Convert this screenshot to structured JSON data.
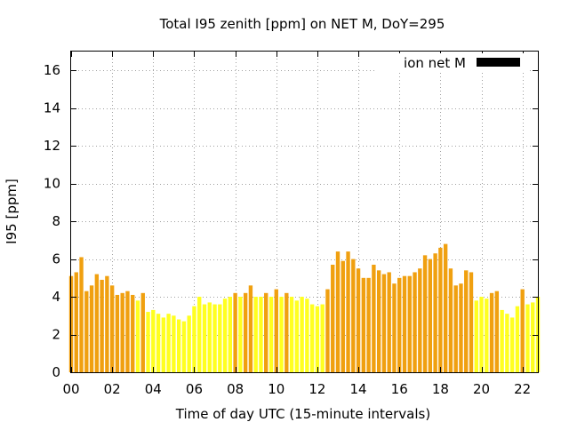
{
  "chart_data": {
    "type": "bar",
    "title": "Total I95 zenith [ppm] on NET M, DoY=295",
    "xlabel": "Time of day UTC (15-minute intervals)",
    "ylabel": "I95 [ppm]",
    "ylim": [
      0,
      17
    ],
    "xlim": [
      0,
      22.75
    ],
    "bar_width_hours": 0.19,
    "yticks": [
      0,
      2,
      4,
      6,
      8,
      10,
      12,
      14,
      16
    ],
    "ytick_labels": [
      "0",
      "2",
      "4",
      "6",
      "8",
      "10",
      "12",
      "14",
      "16"
    ],
    "xticks": [
      0,
      2,
      4,
      6,
      8,
      10,
      12,
      14,
      16,
      18,
      20,
      22
    ],
    "xtick_labels": [
      "00",
      "02",
      "04",
      "06",
      "08",
      "10",
      "12",
      "14",
      "16",
      "18",
      "20",
      "22"
    ],
    "grid": true,
    "legend": {
      "label": "ion net M",
      "color": "#000000",
      "position": "top-right"
    },
    "colors": {
      "high": "#f0a010",
      "low": "#ffff20"
    },
    "threshold": 4.05,
    "x_start": 0.0,
    "x_step": 0.25,
    "values": [
      5.1,
      5.3,
      6.1,
      4.3,
      4.6,
      5.2,
      4.9,
      5.1,
      4.6,
      4.1,
      4.2,
      4.3,
      4.1,
      3.8,
      4.2,
      3.2,
      3.3,
      3.1,
      2.9,
      3.1,
      3.0,
      2.8,
      2.7,
      3.0,
      3.5,
      4.0,
      3.6,
      3.7,
      3.6,
      3.6,
      3.9,
      4.0,
      4.2,
      4.0,
      4.2,
      4.6,
      4.0,
      4.0,
      4.2,
      4.0,
      4.4,
      4.0,
      4.2,
      4.0,
      3.8,
      4.0,
      3.9,
      3.6,
      3.5,
      3.6,
      4.4,
      5.7,
      6.4,
      5.9,
      6.4,
      6.0,
      5.5,
      5.0,
      5.0,
      5.7,
      5.4,
      5.2,
      5.3,
      4.7,
      5.0,
      5.1,
      5.1,
      5.3,
      5.5,
      6.2,
      6.0,
      6.3,
      6.6,
      6.8,
      5.5,
      4.6,
      4.7,
      5.4,
      5.3,
      3.8,
      4.0,
      3.9,
      4.2,
      4.3,
      3.3,
      3.1,
      2.9,
      3.5,
      4.4,
      3.6,
      3.7,
      4.0
    ]
  }
}
